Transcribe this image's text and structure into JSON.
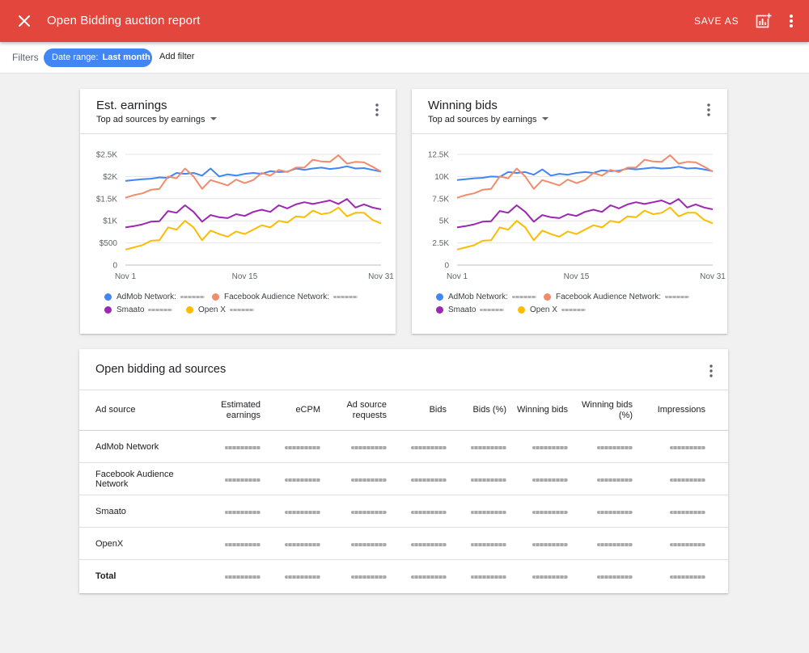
{
  "app_bar": {
    "title": "Open Bidding auction report",
    "save_as_label": "SAVE AS",
    "close_icon": "close-icon",
    "add_chart_icon": "add-chart-icon",
    "menu_icon": "more-vert-icon",
    "background_color": "#e2463c"
  },
  "filters": {
    "label": "Filters",
    "chip_label": "Date range:",
    "chip_value": "Last month",
    "add_filter_label": "Add filter",
    "chip_color": "#4285f4"
  },
  "cards": [
    {
      "title": "Est. earnings",
      "subtitle": "Top ad sources by earnings"
    },
    {
      "title": "Winning bids",
      "subtitle": "Top ad sources by earnings"
    }
  ],
  "legend": [
    {
      "name": "AdMob Network:",
      "color": "#4285f4"
    },
    {
      "name": "Facebook Audience Network:",
      "color": "#f28b6c"
    },
    {
      "name": "Smaato",
      "color": "#9c27b0"
    },
    {
      "name": "Open X",
      "color": "#fbbc04"
    }
  ],
  "chart_data": [
    {
      "type": "line",
      "title": "Est. earnings",
      "x_tick_labels": [
        "Nov 1",
        "Nov 15",
        "Nov 31"
      ],
      "x_tick_positions": [
        1,
        15,
        31
      ],
      "y_tick_labels": [
        "0",
        "$500",
        "$1K",
        "$1.5K",
        "$2K",
        "$2.5K"
      ],
      "y_tick_values": [
        0,
        500,
        1000,
        1500,
        2000,
        2500
      ],
      "ylim": [
        0,
        2500
      ],
      "xlim": [
        1,
        31
      ],
      "grid": true,
      "legend_position": "bottom",
      "x": [
        1,
        2,
        3,
        4,
        5,
        6,
        7,
        8,
        9,
        10,
        11,
        12,
        13,
        14,
        15,
        16,
        17,
        18,
        19,
        20,
        21,
        22,
        23,
        24,
        25,
        26,
        27,
        28,
        29,
        30,
        31
      ],
      "series": [
        {
          "name": "AdMob Network",
          "color": "#4285f4",
          "values": [
            1900,
            1920,
            1940,
            1950,
            1980,
            1970,
            2080,
            2060,
            2080,
            2020,
            2180,
            2000,
            2050,
            2020,
            2060,
            2080,
            2060,
            2120,
            2100,
            2110,
            2180,
            2150,
            2180,
            2200,
            2170,
            2190,
            2230,
            2180,
            2190,
            2150,
            2110
          ]
        },
        {
          "name": "Facebook Audience Network",
          "color": "#f28b6c",
          "values": [
            1520,
            1580,
            1620,
            1700,
            1720,
            2000,
            1960,
            2180,
            2000,
            1720,
            1920,
            1860,
            1800,
            1930,
            1850,
            1920,
            2080,
            2020,
            2150,
            2100,
            2200,
            2200,
            2380,
            2340,
            2330,
            2480,
            2290,
            2330,
            2320,
            2220,
            2110
          ]
        },
        {
          "name": "Smaato",
          "color": "#9c27b0",
          "values": [
            850,
            880,
            920,
            980,
            990,
            1220,
            1180,
            1350,
            1200,
            980,
            1130,
            1080,
            1060,
            1150,
            1110,
            1200,
            1250,
            1200,
            1350,
            1280,
            1370,
            1420,
            1380,
            1420,
            1460,
            1380,
            1490,
            1300,
            1370,
            1300,
            1260
          ]
        },
        {
          "name": "Open X",
          "color": "#fbbc04",
          "values": [
            350,
            400,
            450,
            550,
            560,
            850,
            800,
            1000,
            850,
            560,
            780,
            700,
            640,
            760,
            700,
            800,
            900,
            850,
            1000,
            960,
            1100,
            1080,
            1230,
            1150,
            1180,
            1300,
            1100,
            1180,
            1180,
            1020,
            940
          ]
        }
      ]
    },
    {
      "type": "line",
      "title": "Winning bids",
      "x_tick_labels": [
        "Nov 1",
        "Nov 15",
        "Nov 31"
      ],
      "x_tick_positions": [
        1,
        15,
        31
      ],
      "y_tick_labels": [
        "0",
        "2.5K",
        "5K",
        "7.5K",
        "10K",
        "12.5K"
      ],
      "y_tick_values": [
        0,
        2500,
        5000,
        7500,
        10000,
        12500
      ],
      "ylim": [
        0,
        12500
      ],
      "xlim": [
        1,
        31
      ],
      "grid": true,
      "legend_position": "bottom",
      "x": [
        1,
        2,
        3,
        4,
        5,
        6,
        7,
        8,
        9,
        10,
        11,
        12,
        13,
        14,
        15,
        16,
        17,
        18,
        19,
        20,
        21,
        22,
        23,
        24,
        25,
        26,
        27,
        28,
        29,
        30,
        31
      ],
      "series": [
        {
          "name": "AdMob Network",
          "color": "#4285f4",
          "values": [
            9600,
            9700,
            9800,
            9850,
            10000,
            9950,
            10500,
            10400,
            10500,
            10200,
            10800,
            10100,
            10300,
            10200,
            10400,
            10500,
            10400,
            10700,
            10600,
            10650,
            10900,
            10800,
            10900,
            11000,
            10900,
            10950,
            11100,
            10900,
            10950,
            10800,
            10600
          ]
        },
        {
          "name": "Facebook Audience Network",
          "color": "#f28b6c",
          "values": [
            7600,
            7900,
            8100,
            8500,
            8600,
            10000,
            9800,
            10900,
            10000,
            8600,
            9600,
            9300,
            9000,
            9650,
            9250,
            9600,
            10400,
            10100,
            10750,
            10500,
            11000,
            11000,
            11900,
            11700,
            11650,
            12400,
            11450,
            11650,
            11600,
            11100,
            10550
          ]
        },
        {
          "name": "Smaato",
          "color": "#9c27b0",
          "values": [
            4250,
            4400,
            4600,
            4900,
            4950,
            6100,
            5900,
            6750,
            6000,
            4900,
            5650,
            5400,
            5300,
            5750,
            5550,
            6000,
            6250,
            6000,
            6750,
            6400,
            6850,
            7100,
            6900,
            7100,
            7300,
            6900,
            7450,
            6500,
            6850,
            6500,
            6300
          ]
        },
        {
          "name": "Open X",
          "color": "#fbbc04",
          "values": [
            1750,
            2000,
            2250,
            2750,
            2800,
            4250,
            4000,
            5000,
            4250,
            2800,
            3900,
            3500,
            3200,
            3800,
            3500,
            4000,
            4500,
            4250,
            5000,
            4800,
            5500,
            5400,
            6150,
            5750,
            5900,
            6500,
            5500,
            5900,
            5900,
            5100,
            4700
          ]
        }
      ]
    }
  ],
  "table": {
    "title": "Open bidding ad sources",
    "columns": [
      "Ad source",
      "Estimated earnings",
      "eCPM",
      "Ad source requests",
      "Bids",
      "Bids (%)",
      "Winning bids",
      "Winning bids (%)",
      "Impressions"
    ],
    "rows": [
      {
        "name": "AdMob Network"
      },
      {
        "name": "Facebook Audience Network"
      },
      {
        "name": "Smaato"
      },
      {
        "name": "OpenX"
      },
      {
        "name": "Total",
        "is_total": true
      }
    ]
  }
}
